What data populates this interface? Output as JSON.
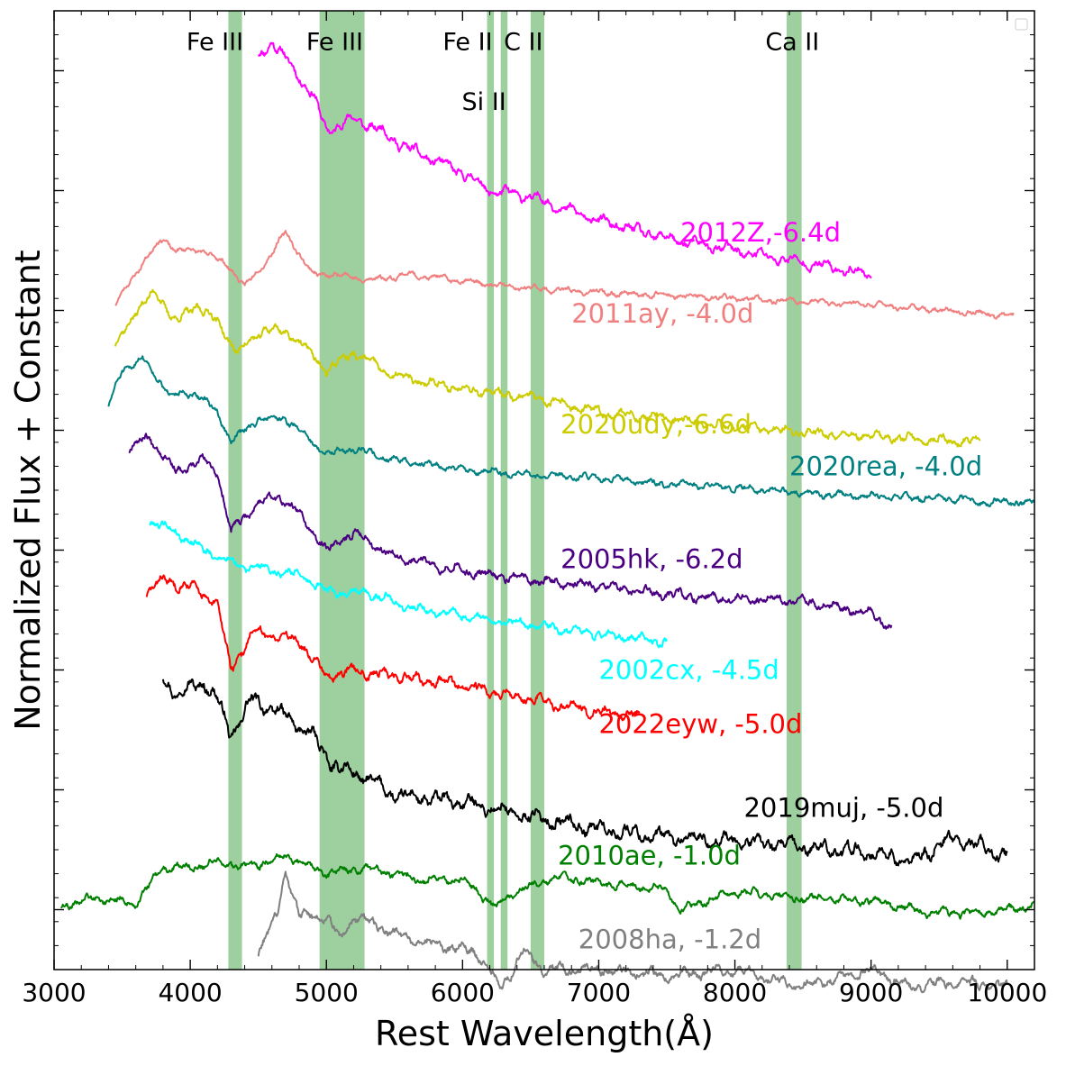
{
  "chart_data": {
    "type": "line",
    "title": "",
    "xlabel": "Rest Wavelength(Å)",
    "ylabel": "Normalized Flux + Constant",
    "xlim": [
      3000,
      10200
    ],
    "ylim": [
      0,
      16
    ],
    "x_ticks": [
      3000,
      4000,
      5000,
      6000,
      7000,
      8000,
      9000,
      10000
    ],
    "x_tick_labels": [
      "3000",
      "4000",
      "5000",
      "6000",
      "7000",
      "8000",
      "9000",
      "10000"
    ],
    "y_tick_values": [
      1,
      3,
      5,
      7,
      9,
      11,
      13,
      15
    ],
    "bands": [
      {
        "x0": 4280,
        "x1": 4380,
        "label": "Fe III",
        "label_x": 4390,
        "label_y": 15.5
      },
      {
        "x0": 4950,
        "x1": 5280,
        "label": "Fe III",
        "label_x": 5270,
        "label_y": 15.5
      },
      {
        "x0": 6180,
        "x1": 6230,
        "label": "Fe II",
        "label_x": 6220,
        "label_y": 15.5
      },
      {
        "x0": 6280,
        "x1": 6330,
        "label": "Si II",
        "label_x": 6320,
        "label_y": 14.5
      },
      {
        "x0": 6500,
        "x1": 6600,
        "label": "C II",
        "label_x": 6590,
        "label_y": 15.5
      },
      {
        "x0": 8380,
        "x1": 8490,
        "label": "Ca II",
        "label_x": 8620,
        "label_y": 15.5
      }
    ],
    "band_color": "#99cc99",
    "series": [
      {
        "name": "2012Z,-6.4d",
        "label": "2012Z,-6.4d",
        "color": "#ff00ff",
        "x0": 4500,
        "x1": 9000,
        "noise": 0.09,
        "seed": 11,
        "points": [
          [
            4500,
            15.2
          ],
          [
            4600,
            15.5
          ],
          [
            4700,
            15.2
          ],
          [
            4800,
            14.9
          ],
          [
            4900,
            14.6
          ],
          [
            5000,
            14.0
          ],
          [
            5200,
            14.2
          ],
          [
            5400,
            14.0
          ],
          [
            5600,
            13.7
          ],
          [
            5800,
            13.5
          ],
          [
            6000,
            13.3
          ],
          [
            6200,
            13.0
          ],
          [
            6500,
            12.9
          ],
          [
            7000,
            12.5
          ],
          [
            7500,
            12.2
          ],
          [
            8000,
            12.0
          ],
          [
            8500,
            11.8
          ],
          [
            9000,
            11.6
          ]
        ],
        "label_x": 7600,
        "label_y": 12.15,
        "label_anchor": "start"
      },
      {
        "name": "2011ay, -4.0d",
        "label": "2011ay, -4.0d",
        "color": "#f08080",
        "x0": 3450,
        "x1": 10050,
        "noise": 0.05,
        "seed": 23,
        "points": [
          [
            3450,
            11.1
          ],
          [
            3650,
            11.8
          ],
          [
            3800,
            12.2
          ],
          [
            3900,
            12.0
          ],
          [
            4100,
            12.0
          ],
          [
            4300,
            11.7
          ],
          [
            4400,
            11.4
          ],
          [
            4550,
            11.8
          ],
          [
            4700,
            12.3
          ],
          [
            4900,
            11.6
          ],
          [
            5100,
            11.6
          ],
          [
            5300,
            11.5
          ],
          [
            5600,
            11.6
          ],
          [
            6000,
            11.5
          ],
          [
            6300,
            11.4
          ],
          [
            7000,
            11.3
          ],
          [
            8000,
            11.2
          ],
          [
            9000,
            11.1
          ],
          [
            10050,
            10.9
          ]
        ],
        "label_x": 6800,
        "label_y": 10.8,
        "label_anchor": "start"
      },
      {
        "name": "2020udy,-6.6d",
        "label": "2020udy,-6.6d",
        "color": "#cccc00",
        "x0": 3450,
        "x1": 9800,
        "noise": 0.08,
        "seed": 37,
        "points": [
          [
            3450,
            10.4
          ],
          [
            3600,
            11.0
          ],
          [
            3750,
            11.3
          ],
          [
            3900,
            10.8
          ],
          [
            4050,
            11.1
          ],
          [
            4200,
            10.8
          ],
          [
            4350,
            10.3
          ],
          [
            4550,
            10.7
          ],
          [
            4750,
            10.6
          ],
          [
            5000,
            10.0
          ],
          [
            5200,
            10.3
          ],
          [
            5500,
            9.9
          ],
          [
            6000,
            9.7
          ],
          [
            6500,
            9.55
          ],
          [
            7000,
            9.3
          ],
          [
            7500,
            9.2
          ],
          [
            8000,
            9.05
          ],
          [
            9000,
            8.9
          ],
          [
            9800,
            8.8
          ]
        ],
        "label_x": 6720,
        "label_y": 8.95,
        "label_anchor": "start"
      },
      {
        "name": "2020rea, -4.0d",
        "label": "2020rea, -4.0d",
        "color": "#008080",
        "x0": 3400,
        "x1": 10200,
        "noise": 0.06,
        "seed": 51,
        "points": [
          [
            3400,
            9.4
          ],
          [
            3500,
            10.0
          ],
          [
            3650,
            10.2
          ],
          [
            3850,
            9.6
          ],
          [
            4050,
            9.6
          ],
          [
            4200,
            9.3
          ],
          [
            4300,
            8.8
          ],
          [
            4500,
            9.2
          ],
          [
            4700,
            9.2
          ],
          [
            5000,
            8.6
          ],
          [
            5200,
            8.7
          ],
          [
            5500,
            8.5
          ],
          [
            6000,
            8.35
          ],
          [
            6500,
            8.25
          ],
          [
            7000,
            8.2
          ],
          [
            7500,
            8.1
          ],
          [
            8000,
            8.05
          ],
          [
            8500,
            7.95
          ],
          [
            9000,
            7.9
          ],
          [
            9700,
            7.85
          ],
          [
            9720,
            7.8
          ],
          [
            10200,
            7.8
          ]
        ],
        "label_x": 8400,
        "label_y": 8.25,
        "label_anchor": "start"
      },
      {
        "name": "2005hk, -6.2d",
        "label": "2005hk, -6.2d",
        "color": "#4b0082",
        "x0": 3550,
        "x1": 9150,
        "noise": 0.08,
        "seed": 67,
        "points": [
          [
            3550,
            8.7
          ],
          [
            3700,
            8.9
          ],
          [
            3900,
            8.3
          ],
          [
            4100,
            8.5
          ],
          [
            4200,
            8.3
          ],
          [
            4300,
            7.3
          ],
          [
            4500,
            7.8
          ],
          [
            4650,
            7.9
          ],
          [
            4800,
            7.6
          ],
          [
            5000,
            7.0
          ],
          [
            5200,
            7.3
          ],
          [
            5500,
            6.9
          ],
          [
            6000,
            6.65
          ],
          [
            6500,
            6.5
          ],
          [
            7000,
            6.4
          ],
          [
            7500,
            6.25
          ],
          [
            8000,
            6.2
          ],
          [
            8500,
            6.15
          ],
          [
            9000,
            5.95
          ],
          [
            9150,
            5.7
          ]
        ],
        "label_x": 6720,
        "label_y": 6.7,
        "label_anchor": "start"
      },
      {
        "name": "2002cx, -4.5d",
        "label": "2002cx, -4.5d",
        "color": "#00ffff",
        "x0": 3700,
        "x1": 7500,
        "noise": 0.08,
        "seed": 79,
        "points": [
          [
            3700,
            7.5
          ],
          [
            3900,
            7.3
          ],
          [
            4100,
            7.0
          ],
          [
            4300,
            6.8
          ],
          [
            4500,
            6.7
          ],
          [
            4800,
            6.6
          ],
          [
            5000,
            6.3
          ],
          [
            5300,
            6.3
          ],
          [
            5600,
            6.05
          ],
          [
            6000,
            5.9
          ],
          [
            6500,
            5.75
          ],
          [
            7000,
            5.6
          ],
          [
            7500,
            5.45
          ]
        ],
        "label_x": 7000,
        "label_y": 4.85,
        "label_anchor": "start"
      },
      {
        "name": "2022eyw, -5.0d",
        "label": "2022eyw, -5.0d",
        "color": "#ff0000",
        "x0": 3680,
        "x1": 7300,
        "noise": 0.09,
        "seed": 83,
        "points": [
          [
            3680,
            6.3
          ],
          [
            3800,
            6.5
          ],
          [
            4000,
            6.4
          ],
          [
            4200,
            6.1
          ],
          [
            4300,
            5.0
          ],
          [
            4450,
            5.6
          ],
          [
            4600,
            5.6
          ],
          [
            4800,
            5.5
          ],
          [
            5000,
            4.9
          ],
          [
            5200,
            5.0
          ],
          [
            5500,
            4.9
          ],
          [
            6000,
            4.75
          ],
          [
            6500,
            4.5
          ],
          [
            7000,
            4.3
          ],
          [
            7300,
            4.25
          ]
        ],
        "label_x": 7000,
        "label_y": 3.95,
        "label_anchor": "start"
      },
      {
        "name": "2019muj, -5.0d",
        "label": "2019muj, -5.0d",
        "color": "#000000",
        "x0": 3800,
        "x1": 10000,
        "noise": 0.12,
        "seed": 97,
        "points": [
          [
            3800,
            4.9
          ],
          [
            3900,
            4.6
          ],
          [
            4100,
            4.8
          ],
          [
            4200,
            4.5
          ],
          [
            4300,
            3.9
          ],
          [
            4450,
            4.5
          ],
          [
            4650,
            4.3
          ],
          [
            4900,
            3.9
          ],
          [
            5050,
            3.4
          ],
          [
            5300,
            3.2
          ],
          [
            5500,
            2.9
          ],
          [
            6000,
            2.8
          ],
          [
            6500,
            2.55
          ],
          [
            7000,
            2.35
          ],
          [
            7500,
            2.2
          ],
          [
            8000,
            2.15
          ],
          [
            8500,
            2.05
          ],
          [
            9000,
            1.95
          ],
          [
            9300,
            1.8
          ],
          [
            9600,
            2.2
          ],
          [
            10000,
            1.9
          ]
        ],
        "label_x": 8800,
        "label_y": 2.55,
        "label_anchor": "middle"
      },
      {
        "name": "2010ae, -1.0d",
        "label": "2010ae, -1.0d",
        "color": "#008000",
        "x0": 3050,
        "x1": 10200,
        "noise": 0.07,
        "seed": 109,
        "points": [
          [
            3050,
            1.05
          ],
          [
            3300,
            1.2
          ],
          [
            3600,
            1.1
          ],
          [
            3800,
            1.7
          ],
          [
            4000,
            1.7
          ],
          [
            4200,
            1.8
          ],
          [
            4400,
            1.7
          ],
          [
            4700,
            1.9
          ],
          [
            5000,
            1.6
          ],
          [
            5300,
            1.7
          ],
          [
            5700,
            1.5
          ],
          [
            6000,
            1.5
          ],
          [
            6250,
            1.05
          ],
          [
            6400,
            1.3
          ],
          [
            6700,
            1.55
          ],
          [
            7000,
            1.45
          ],
          [
            7500,
            1.35
          ],
          [
            7600,
            1.0
          ],
          [
            8000,
            1.3
          ],
          [
            8500,
            1.2
          ],
          [
            9000,
            1.15
          ],
          [
            9400,
            0.95
          ],
          [
            9800,
            0.95
          ],
          [
            10200,
            1.05
          ]
        ],
        "label_x": 6700,
        "label_y": 1.75,
        "label_anchor": "start"
      },
      {
        "name": "2008ha, -1.2d",
        "label": "2008ha, -1.2d",
        "color": "#808080",
        "x0": 4500,
        "x1": 10000,
        "noise": 0.09,
        "seed": 127,
        "points": [
          [
            4500,
            0.3
          ],
          [
            4650,
            1.0
          ],
          [
            4700,
            1.7
          ],
          [
            4800,
            0.9
          ],
          [
            5000,
            0.9
          ],
          [
            5100,
            0.5
          ],
          [
            5200,
            0.9
          ],
          [
            5500,
            0.6
          ],
          [
            5800,
            0.4
          ],
          [
            6100,
            0.3
          ],
          [
            6280,
            -0.3
          ],
          [
            6450,
            0.3
          ],
          [
            6600,
            0.0
          ],
          [
            7000,
            0.0
          ],
          [
            7500,
            -0.1
          ],
          [
            8000,
            0.0
          ],
          [
            8500,
            -0.3
          ],
          [
            9000,
            0.0
          ],
          [
            9300,
            -0.3
          ],
          [
            9600,
            -0.2
          ],
          [
            10000,
            -0.3
          ]
        ],
        "label_x": 6850,
        "label_y": 0.35,
        "label_anchor": "start"
      }
    ]
  }
}
